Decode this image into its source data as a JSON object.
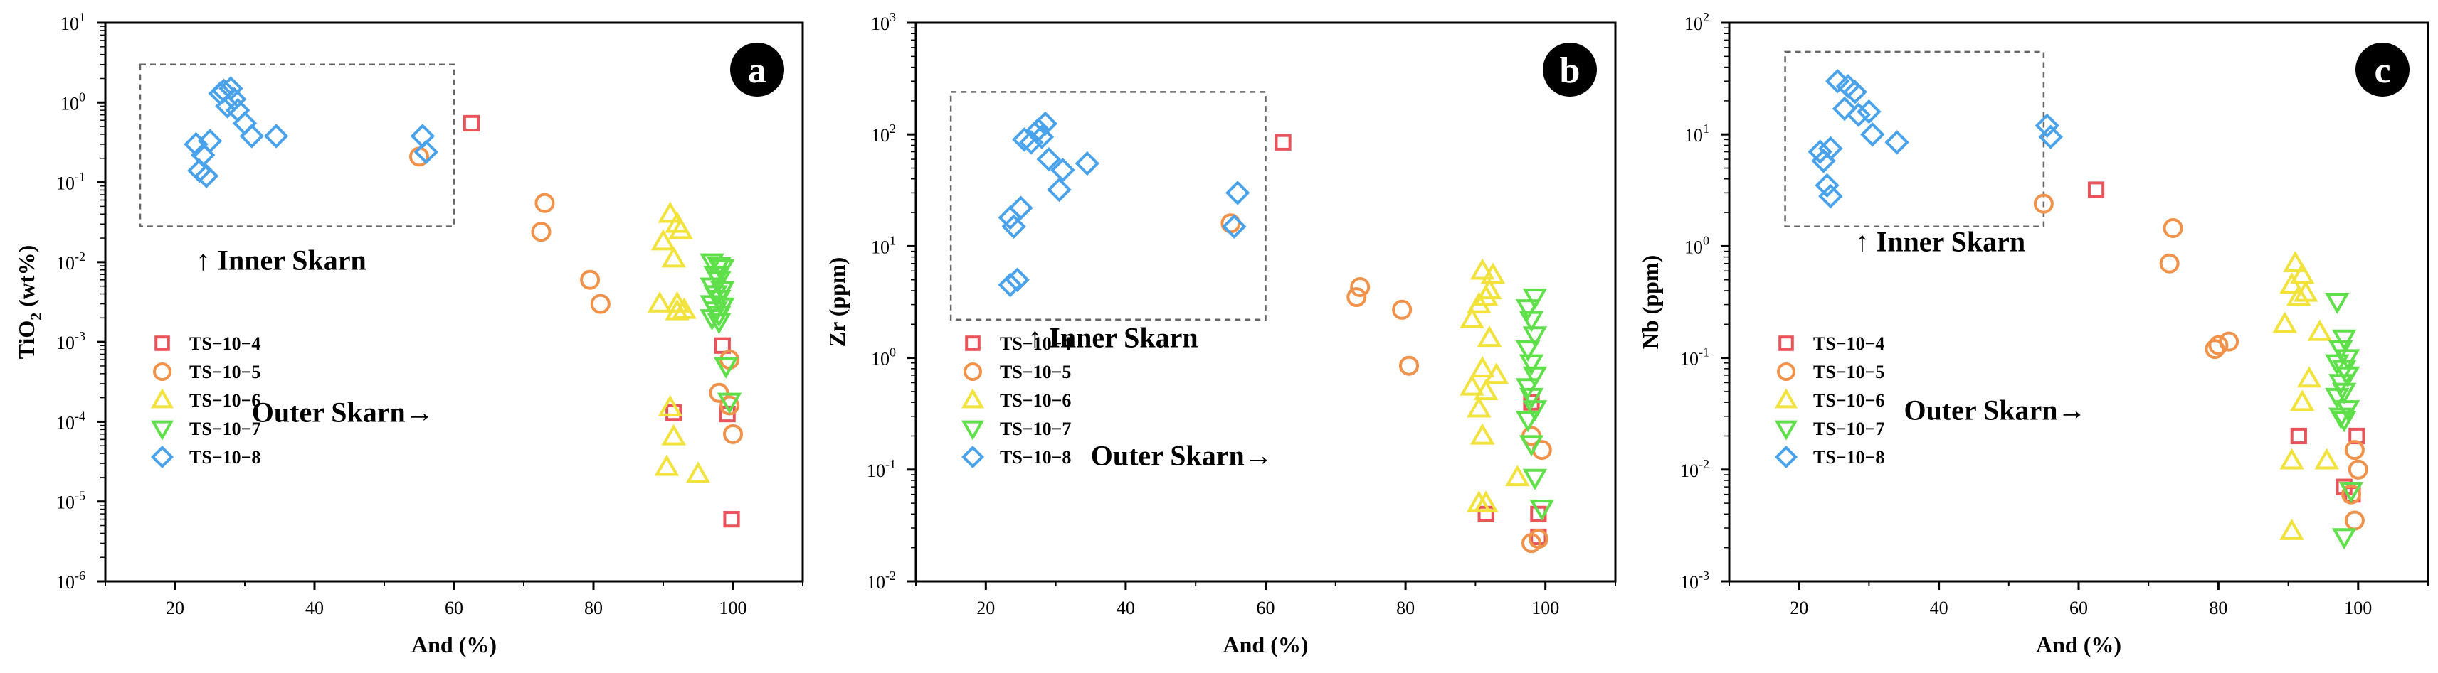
{
  "figure_caption": "",
  "legend_labels": [
    "TS−10−4",
    "TS−10−5",
    "TS−10−6",
    "TS−10−7",
    "TS−10−8"
  ],
  "chart_data": [
    {
      "type": "scatter",
      "panel": "a",
      "title": "",
      "xlabel": "And (%)",
      "ylabel_base": "TiO",
      "ylabel_sub": "2",
      "ylabel_tail": " (wt%)",
      "xlim": [
        10,
        110
      ],
      "xticks": [
        20,
        40,
        60,
        80,
        100
      ],
      "ylim": [
        1e-06,
        10
      ],
      "yscale": "log",
      "yticks": [
        {
          "value": 1e-06,
          "base": "10",
          "exp": "-6"
        },
        {
          "value": 1e-05,
          "base": "10",
          "exp": "-5"
        },
        {
          "value": 0.0001,
          "base": "10",
          "exp": "-4"
        },
        {
          "value": 0.001,
          "base": "10",
          "exp": "-3"
        },
        {
          "value": 0.01,
          "base": "10",
          "exp": "-2"
        },
        {
          "value": 0.1,
          "base": "10",
          "exp": "-1"
        },
        {
          "value": 1,
          "base": "10",
          "exp": "0"
        },
        {
          "value": 10,
          "base": "10",
          "exp": "1"
        }
      ],
      "annotations": {
        "inner": "↑ Inner Skarn",
        "outer": "Outer Skarn→",
        "inner_pos": [
          23,
          0.008
        ],
        "outer_pos": [
          31,
          0.0001
        ]
      },
      "inner_box": {
        "x0": 15,
        "x1": 60,
        "y0": 0.028,
        "y1": 3.0
      },
      "legend_position": "lower-left",
      "series": [
        {
          "name": "TS−10−4",
          "marker": "square",
          "color": "#e8545a",
          "points": [
            [
              62.5,
              0.55
            ],
            [
              98.5,
              0.0009
            ],
            [
              99.2,
              0.000125
            ],
            [
              99.8,
              6e-06
            ],
            [
              91.5,
              0.00013
            ]
          ]
        },
        {
          "name": "TS−10−5",
          "marker": "circle",
          "color": "#f0924a",
          "points": [
            [
              55,
              0.21
            ],
            [
              73,
              0.055
            ],
            [
              72.5,
              0.024
            ],
            [
              79.5,
              0.006
            ],
            [
              81,
              0.003
            ],
            [
              98,
              0.00023
            ],
            [
              99.5,
              0.00016
            ],
            [
              100,
              7e-05
            ],
            [
              99.5,
              0.0006
            ]
          ]
        },
        {
          "name": "TS−10−6",
          "marker": "triangle-up",
          "color": "#f2e23c",
          "points": [
            [
              91,
              0.04
            ],
            [
              92,
              0.03
            ],
            [
              92.5,
              0.025
            ],
            [
              90,
              0.018
            ],
            [
              91.5,
              0.011
            ],
            [
              89.5,
              0.003
            ],
            [
              92,
              0.003
            ],
            [
              93,
              0.0025
            ],
            [
              92,
              0.0024
            ],
            [
              91,
              0.00015
            ],
            [
              91.5,
              6.5e-05
            ],
            [
              90.5,
              2.7e-05
            ],
            [
              95,
              2.2e-05
            ]
          ]
        },
        {
          "name": "TS−10−7",
          "marker": "triangle-down",
          "color": "#5fe04a",
          "points": [
            [
              97,
              0.01
            ],
            [
              98,
              0.009
            ],
            [
              98.5,
              0.0085
            ],
            [
              97.5,
              0.007
            ],
            [
              98,
              0.006
            ],
            [
              97,
              0.005
            ],
            [
              98.5,
              0.0045
            ],
            [
              97.5,
              0.004
            ],
            [
              98,
              0.0035
            ],
            [
              97,
              0.003
            ],
            [
              98.5,
              0.0028
            ],
            [
              97.5,
              0.0025
            ],
            [
              98,
              0.0022
            ],
            [
              97,
              0.002
            ],
            [
              98,
              0.0018
            ],
            [
              99,
              0.0005
            ],
            [
              99.5,
              0.00018
            ]
          ]
        },
        {
          "name": "TS−10−8",
          "marker": "diamond",
          "color": "#4aa3ea",
          "points": [
            [
              27,
              1.4
            ],
            [
              28,
              1.5
            ],
            [
              26.5,
              1.3
            ],
            [
              28.5,
              1.1
            ],
            [
              27.5,
              0.9
            ],
            [
              29,
              0.8
            ],
            [
              30,
              0.55
            ],
            [
              31,
              0.38
            ],
            [
              34.5,
              0.38
            ],
            [
              23,
              0.3
            ],
            [
              25,
              0.33
            ],
            [
              24,
              0.22
            ],
            [
              23.5,
              0.14
            ],
            [
              24.5,
              0.12
            ],
            [
              55.5,
              0.38
            ],
            [
              56,
              0.24
            ]
          ]
        }
      ]
    },
    {
      "type": "scatter",
      "panel": "b",
      "title": "",
      "xlabel": "And (%)",
      "ylabel_base": "Zr (ppm)",
      "ylabel_sub": "",
      "ylabel_tail": "",
      "xlim": [
        10,
        110
      ],
      "xticks": [
        20,
        40,
        60,
        80,
        100
      ],
      "ylim": [
        0.01,
        1000
      ],
      "yscale": "log",
      "yticks": [
        {
          "value": 0.01,
          "base": "10",
          "exp": "-2"
        },
        {
          "value": 0.1,
          "base": "10",
          "exp": "-1"
        },
        {
          "value": 1,
          "base": "10",
          "exp": "0"
        },
        {
          "value": 10,
          "base": "10",
          "exp": "1"
        },
        {
          "value": 100,
          "base": "10",
          "exp": "2"
        },
        {
          "value": 1000,
          "base": "10",
          "exp": "3"
        }
      ],
      "annotations": {
        "inner": "↑ Inner Skarn",
        "outer": "Outer Skarn→",
        "inner_pos": [
          26,
          1.25
        ],
        "outer_pos": [
          35,
          0.11
        ]
      },
      "inner_box": {
        "x0": 15,
        "x1": 60,
        "y0": 2.2,
        "y1": 240
      },
      "legend_position": "lower-left",
      "series": [
        {
          "name": "TS−10−4",
          "marker": "square",
          "color": "#e8545a",
          "points": [
            [
              62.5,
              85
            ],
            [
              98,
              0.4
            ],
            [
              91.5,
              0.04
            ],
            [
              99,
              0.04
            ],
            [
              99,
              0.025
            ]
          ]
        },
        {
          "name": "TS−10−5",
          "marker": "circle",
          "color": "#f0924a",
          "points": [
            [
              55,
              16
            ],
            [
              73.5,
              4.3
            ],
            [
              73,
              3.5
            ],
            [
              79.5,
              2.7
            ],
            [
              80.5,
              0.85
            ],
            [
              98,
              0.2
            ],
            [
              99.5,
              0.15
            ],
            [
              98,
              0.022
            ],
            [
              99,
              0.024
            ]
          ]
        },
        {
          "name": "TS−10−6",
          "marker": "triangle-up",
          "color": "#f2e23c",
          "points": [
            [
              91,
              6
            ],
            [
              92.5,
              5.5
            ],
            [
              91.5,
              3.5
            ],
            [
              90.5,
              3
            ],
            [
              92,
              4
            ],
            [
              89.5,
              2.2
            ],
            [
              92,
              1.5
            ],
            [
              91,
              0.8
            ],
            [
              93,
              0.7
            ],
            [
              89.5,
              0.55
            ],
            [
              91.5,
              0.5
            ],
            [
              90.5,
              0.35
            ],
            [
              91,
              0.2
            ],
            [
              96,
              0.085
            ],
            [
              90.5,
              0.05
            ],
            [
              91.5,
              0.05
            ]
          ]
        },
        {
          "name": "TS−10−7",
          "marker": "triangle-down",
          "color": "#5fe04a",
          "points": [
            [
              98.5,
              3.5
            ],
            [
              97.5,
              2.8
            ],
            [
              98,
              2.2
            ],
            [
              98.5,
              1.6
            ],
            [
              97.5,
              1.2
            ],
            [
              98,
              0.9
            ],
            [
              98.5,
              0.7
            ],
            [
              97.5,
              0.55
            ],
            [
              98,
              0.45
            ],
            [
              98.5,
              0.35
            ],
            [
              97.5,
              0.28
            ],
            [
              98,
              0.17
            ],
            [
              98.5,
              0.085
            ],
            [
              99.5,
              0.045
            ]
          ]
        },
        {
          "name": "TS−10−8",
          "marker": "diamond",
          "color": "#4aa3ea",
          "points": [
            [
              28.5,
              125
            ],
            [
              27.5,
              110
            ],
            [
              28,
              95
            ],
            [
              26.5,
              85
            ],
            [
              25.5,
              90
            ],
            [
              29,
              60
            ],
            [
              34.5,
              55
            ],
            [
              31,
              48
            ],
            [
              30.5,
              32
            ],
            [
              25,
              22
            ],
            [
              23.5,
              18
            ],
            [
              24,
              15
            ],
            [
              24.5,
              5
            ],
            [
              23.5,
              4.5
            ],
            [
              56,
              30
            ],
            [
              55.5,
              15
            ]
          ]
        }
      ]
    },
    {
      "type": "scatter",
      "panel": "c",
      "title": "",
      "xlabel": "And (%)",
      "ylabel_base": "Nb (ppm)",
      "ylabel_sub": "",
      "ylabel_tail": "",
      "xlim": [
        10,
        110
      ],
      "xticks": [
        20,
        40,
        60,
        80,
        100
      ],
      "ylim": [
        0.001,
        100
      ],
      "yscale": "log",
      "yticks": [
        {
          "value": 0.001,
          "base": "10",
          "exp": "-3"
        },
        {
          "value": 0.01,
          "base": "10",
          "exp": "-2"
        },
        {
          "value": 0.1,
          "base": "10",
          "exp": "-1"
        },
        {
          "value": 1,
          "base": "10",
          "exp": "0"
        },
        {
          "value": 10,
          "base": "10",
          "exp": "1"
        },
        {
          "value": 100,
          "base": "10",
          "exp": "2"
        }
      ],
      "annotations": {
        "inner": "↑ Inner Skarn",
        "outer": "Outer Skarn→",
        "inner_pos": [
          28,
          0.9
        ],
        "outer_pos": [
          35,
          0.028
        ]
      },
      "inner_box": {
        "x0": 18,
        "x1": 55,
        "y0": 1.5,
        "y1": 55
      },
      "legend_position": "lower-left",
      "series": [
        {
          "name": "TS−10−4",
          "marker": "square",
          "color": "#e8545a",
          "points": [
            [
              62.5,
              3.2
            ],
            [
              91.5,
              0.02
            ],
            [
              99.8,
              0.02
            ],
            [
              98,
              0.007
            ],
            [
              99.2,
              0.006
            ]
          ]
        },
        {
          "name": "TS−10−5",
          "marker": "circle",
          "color": "#f0924a",
          "points": [
            [
              55,
              2.4
            ],
            [
              73.5,
              1.45
            ],
            [
              73,
              0.7
            ],
            [
              80,
              0.13
            ],
            [
              81.5,
              0.14
            ],
            [
              79.5,
              0.12
            ],
            [
              99.5,
              0.015
            ],
            [
              100,
              0.01
            ],
            [
              99,
              0.006
            ],
            [
              99.5,
              0.0035
            ]
          ]
        },
        {
          "name": "TS−10−6",
          "marker": "triangle-up",
          "color": "#f2e23c",
          "points": [
            [
              91,
              0.7
            ],
            [
              92,
              0.55
            ],
            [
              90.5,
              0.45
            ],
            [
              92.5,
              0.38
            ],
            [
              91.5,
              0.35
            ],
            [
              89.5,
              0.2
            ],
            [
              94.5,
              0.17
            ],
            [
              93,
              0.065
            ],
            [
              92,
              0.04
            ],
            [
              95.5,
              0.012
            ],
            [
              90.5,
              0.012
            ],
            [
              90.5,
              0.0028
            ]
          ]
        },
        {
          "name": "TS−10−7",
          "marker": "triangle-down",
          "color": "#5fe04a",
          "points": [
            [
              97,
              0.32
            ],
            [
              98,
              0.15
            ],
            [
              97.5,
              0.12
            ],
            [
              98.5,
              0.1
            ],
            [
              97,
              0.09
            ],
            [
              98,
              0.08
            ],
            [
              98.5,
              0.07
            ],
            [
              97.5,
              0.06
            ],
            [
              98,
              0.05
            ],
            [
              97,
              0.045
            ],
            [
              98.5,
              0.035
            ],
            [
              97.5,
              0.03
            ],
            [
              98,
              0.028
            ],
            [
              99,
              0.0065
            ],
            [
              98,
              0.0025
            ]
          ]
        },
        {
          "name": "TS−10−8",
          "marker": "diamond",
          "color": "#4aa3ea",
          "points": [
            [
              25.5,
              30
            ],
            [
              27,
              27
            ],
            [
              28,
              24
            ],
            [
              26.5,
              17
            ],
            [
              28.5,
              15
            ],
            [
              30,
              16
            ],
            [
              30.5,
              10
            ],
            [
              34,
              8.5
            ],
            [
              23,
              7
            ],
            [
              24.5,
              7.5
            ],
            [
              23.5,
              5.8
            ],
            [
              24,
              3.5
            ],
            [
              24.5,
              2.8
            ],
            [
              55.5,
              12
            ],
            [
              56,
              9.5
            ]
          ]
        }
      ]
    }
  ],
  "panel_badges": [
    "a",
    "b",
    "c"
  ]
}
